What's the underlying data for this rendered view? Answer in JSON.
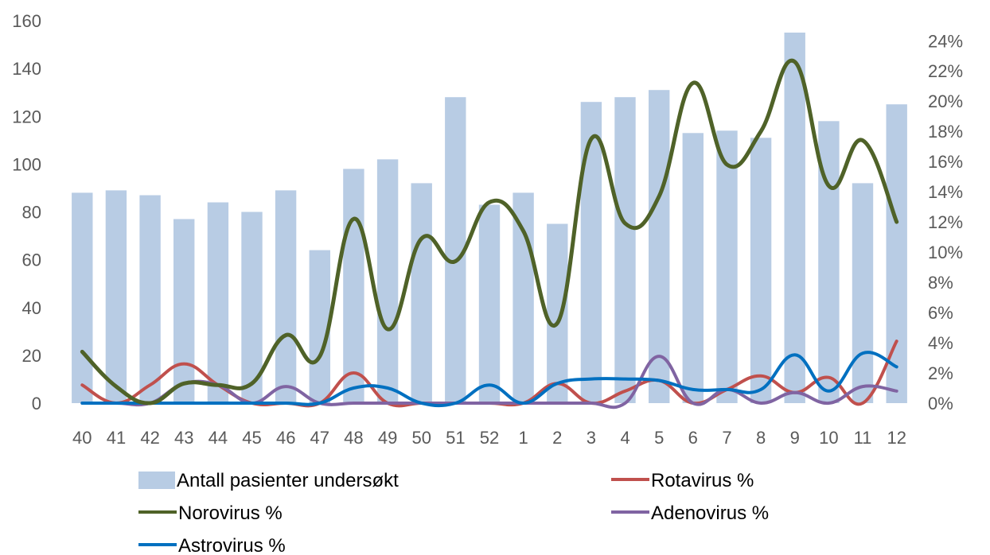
{
  "chart_data": {
    "type": "bar+line",
    "categories": [
      "40",
      "41",
      "42",
      "43",
      "44",
      "45",
      "46",
      "47",
      "48",
      "49",
      "50",
      "51",
      "52",
      "1",
      "2",
      "3",
      "4",
      "5",
      "6",
      "7",
      "8",
      "9",
      "10",
      "11",
      "12"
    ],
    "y_left": {
      "min": 0,
      "max": 160,
      "ticks": [
        "0",
        "20",
        "40",
        "60",
        "80",
        "100",
        "120",
        "140",
        "160"
      ]
    },
    "y_right": {
      "min": 0,
      "max": 25.33,
      "ticks": [
        "0%",
        "2%",
        "4%",
        "6%",
        "8%",
        "10%",
        "12%",
        "14%",
        "16%",
        "18%",
        "20%",
        "22%",
        "24%"
      ]
    },
    "bars": {
      "name": "Antall pasienter undersøkt",
      "color": "#b8cce4",
      "values": [
        88,
        89,
        87,
        77,
        84,
        80,
        89,
        64,
        98,
        102,
        92,
        128,
        83,
        88,
        75,
        126,
        128,
        131,
        113,
        114,
        111,
        155,
        118,
        92,
        125
      ]
    },
    "series": [
      {
        "name": "Rotavirus %",
        "color": "#c0504d",
        "values": [
          1.2,
          0,
          1.2,
          2.6,
          1.2,
          0,
          0,
          0,
          2.0,
          0,
          0,
          0,
          0,
          0,
          1.3,
          0,
          0.8,
          1.5,
          0,
          0.9,
          1.8,
          0.7,
          1.7,
          0,
          4.1
        ]
      },
      {
        "name": "Norovirus %",
        "color": "#4f6228",
        "values": [
          3.4,
          1.1,
          0,
          1.3,
          1.2,
          1.3,
          4.5,
          3.1,
          12.2,
          4.9,
          10.9,
          9.4,
          13.3,
          11.4,
          5.3,
          17.5,
          11.9,
          13.7,
          21.2,
          15.8,
          18.0,
          22.6,
          14.4,
          17.4,
          12.0
        ]
      },
      {
        "name": "Adenovirus %",
        "color": "#8064a2",
        "values": [
          0,
          0,
          0,
          1.3,
          1.2,
          0,
          1.1,
          0,
          0,
          0,
          0,
          0,
          0,
          0,
          0,
          0,
          0,
          3.1,
          0,
          0.9,
          0,
          0.7,
          0,
          1.1,
          0.8
        ]
      },
      {
        "name": "Astrovirus %",
        "color": "#0070c0",
        "values": [
          0,
          0,
          0,
          0,
          0,
          0,
          0,
          0,
          1.0,
          1.0,
          0,
          0,
          1.2,
          0,
          1.3,
          1.6,
          1.6,
          1.5,
          0.9,
          0.9,
          0.9,
          3.2,
          0.8,
          3.3,
          2.4
        ]
      }
    ],
    "legend_position": "bottom",
    "grid": false
  }
}
